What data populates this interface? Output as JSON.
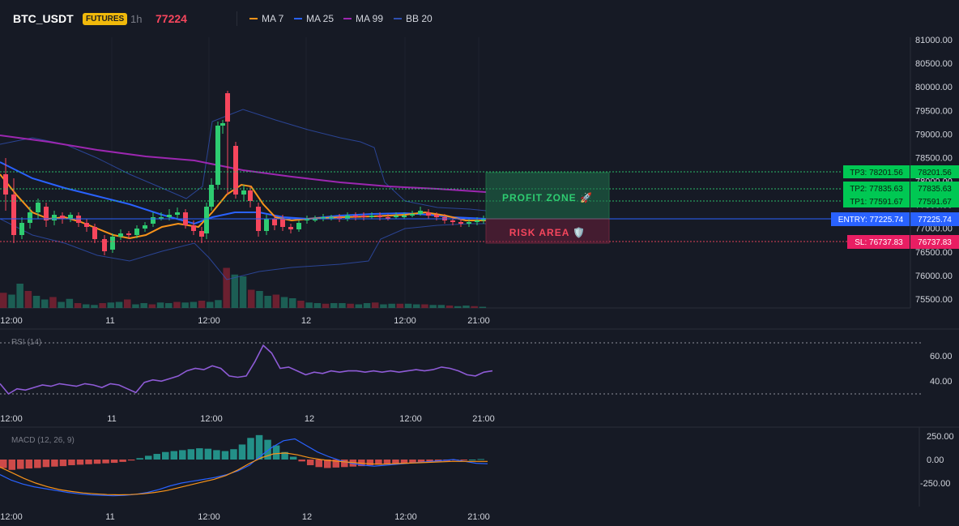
{
  "header": {
    "symbol": "BTC_USDT",
    "badge": "FUTURES",
    "timeframe": "1h",
    "last_price": "77224",
    "legend": [
      {
        "label": "MA 7",
        "color": "#f7931a"
      },
      {
        "label": "MA 25",
        "color": "#2962ff"
      },
      {
        "label": "MA 99",
        "color": "#9c27b0"
      },
      {
        "label": "BB 20",
        "color": "#2f4fb0"
      }
    ]
  },
  "price_axis": {
    "ticks": [
      "81000.00",
      "80500.00",
      "80000.00",
      "79500.00",
      "79000.00",
      "78500.00",
      "78000.00",
      "77500.00",
      "77000.00",
      "76500.00",
      "76000.00",
      "75500.00"
    ],
    "values": [
      81000,
      80500,
      80000,
      79500,
      79000,
      78500,
      78000,
      77500,
      77000,
      76500,
      76000,
      75500
    ]
  },
  "time_axis": {
    "labels": [
      "12:00",
      "11",
      "12:00",
      "12",
      "12:00",
      "21:00"
    ]
  },
  "levels": {
    "tp3": {
      "label": "TP3: 78201.56",
      "axis": "78201.56",
      "value": 78201.56
    },
    "tp2": {
      "label": "TP2: 77835.63",
      "axis": "77835.63",
      "value": 77835.63
    },
    "tp1": {
      "label": "TP1: 77591.67",
      "axis": "77591.67",
      "value": 77591.67
    },
    "entry": {
      "label": "ENTRY: 77225.74",
      "axis": "77225.74",
      "value": 77225.74
    },
    "sl": {
      "label": "SL: 76737.83",
      "axis": "76737.83",
      "value": 76737.83
    }
  },
  "zones": {
    "profit": "PROFIT ZONE 🚀",
    "risk": "RISK AREA 🛡️"
  },
  "rsi": {
    "title": "RSI (14)",
    "ticks": [
      "60.00",
      "40.00"
    ],
    "values": [
      38,
      30,
      34,
      33,
      35,
      37,
      36,
      38,
      37,
      36,
      38,
      37,
      35,
      38,
      37,
      34,
      31,
      39,
      41,
      40,
      42,
      44,
      48,
      50,
      49,
      52,
      50,
      44,
      43,
      44,
      55,
      68,
      62,
      50,
      51,
      48,
      45,
      47,
      46,
      48,
      47,
      48,
      48,
      47,
      48,
      47,
      48,
      47,
      48,
      49,
      48,
      49,
      51,
      50,
      48,
      45,
      44,
      47,
      48
    ]
  },
  "macd": {
    "title": "MACD (12, 26, 9)",
    "ticks": [
      "250.00",
      "0.00",
      "-250.00"
    ],
    "hist": [
      -90,
      -110,
      -100,
      -95,
      -90,
      -80,
      -75,
      -70,
      -60,
      -55,
      -50,
      -45,
      -40,
      -35,
      -25,
      -10,
      15,
      40,
      60,
      80,
      90,
      100,
      110,
      120,
      115,
      100,
      90,
      110,
      160,
      230,
      260,
      210,
      150,
      80,
      30,
      -20,
      -60,
      -80,
      -90,
      -85,
      -80,
      -75,
      -70,
      -60,
      -55,
      -50,
      -45,
      -40,
      -35,
      -30,
      -25,
      -20,
      -15,
      -10,
      -5,
      0,
      5
    ],
    "macd_line": [
      -160,
      -220,
      -260,
      -290,
      -310,
      -330,
      -350,
      -365,
      -375,
      -380,
      -385,
      -380,
      -370,
      -350,
      -320,
      -280,
      -250,
      -230,
      -210,
      -190,
      -160,
      -120,
      -60,
      40,
      130,
      200,
      220,
      150,
      80,
      30,
      -10,
      -40,
      -60,
      -70,
      -60,
      -50,
      -40,
      -30,
      -20,
      -10,
      0,
      -20,
      -40,
      -45
    ],
    "signal_line": [
      -80,
      -140,
      -200,
      -250,
      -290,
      -320,
      -340,
      -355,
      -365,
      -372,
      -375,
      -372,
      -365,
      -350,
      -330,
      -300,
      -270,
      -240,
      -210,
      -170,
      -110,
      -40,
      20,
      60,
      70,
      50,
      20,
      0,
      -15,
      -25,
      -35,
      -45,
      -50,
      -45,
      -40,
      -35,
      -30,
      -25,
      -20,
      -20,
      -20,
      -20
    ]
  },
  "volume": {
    "values": [
      25,
      22,
      40,
      28,
      20,
      14,
      18,
      10,
      15,
      8,
      6,
      5,
      8,
      9,
      10,
      14,
      6,
      8,
      6,
      9,
      8,
      10,
      9,
      10,
      12,
      10,
      13,
      66,
      55,
      52,
      30,
      28,
      20,
      22,
      18,
      16,
      12,
      9,
      8,
      7,
      8,
      8,
      7,
      6,
      8,
      9,
      6,
      7,
      7,
      7,
      6,
      6,
      5,
      5,
      4,
      3,
      4,
      3,
      2
    ]
  }
}
